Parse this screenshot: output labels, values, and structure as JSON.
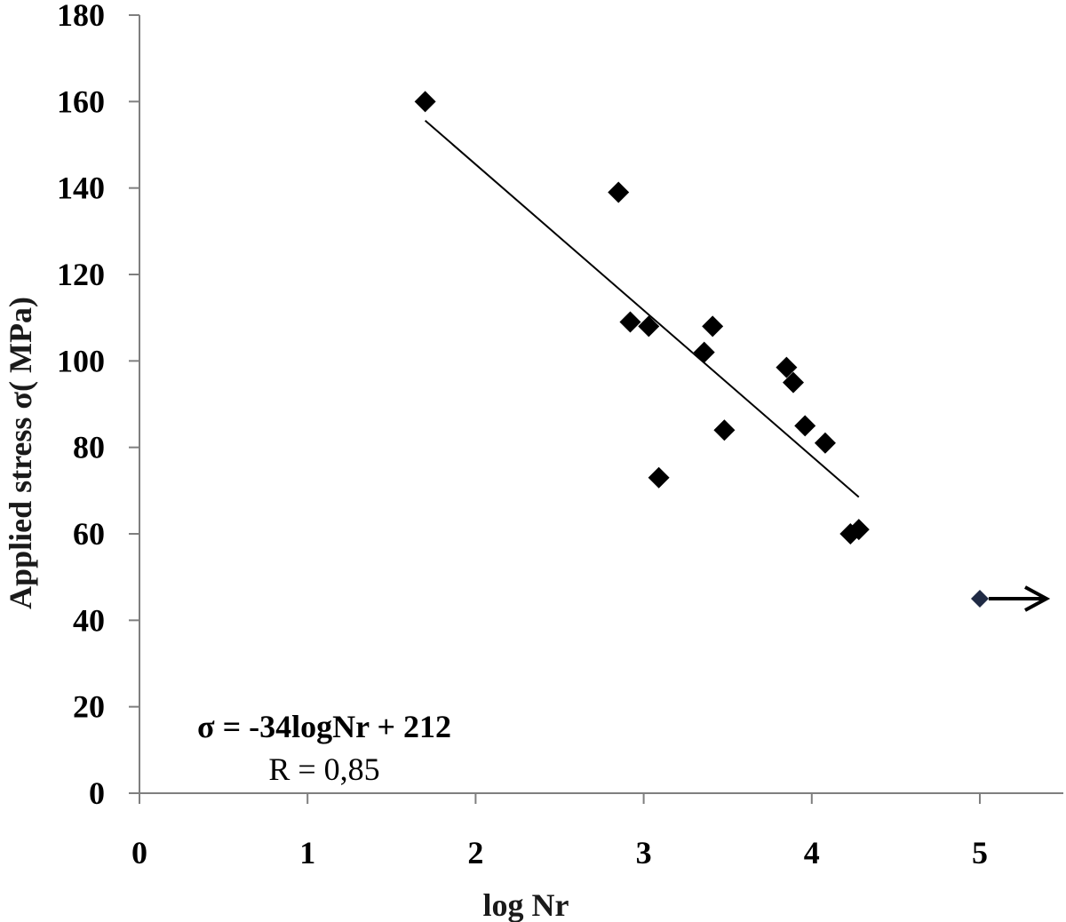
{
  "chart_data": {
    "type": "scatter",
    "title": "",
    "xlabel": "log Nr",
    "ylabel": "Applied  stress  σ( MPa)",
    "xlim": [
      0,
      5.5
    ],
    "ylim": [
      0,
      180
    ],
    "x_ticks": [
      0,
      1,
      2,
      3,
      4,
      5
    ],
    "y_ticks": [
      0,
      20,
      40,
      60,
      80,
      100,
      120,
      140,
      160,
      180
    ],
    "grid": false,
    "legend": "none",
    "series": [
      {
        "marker": "diamond",
        "color": "#000000",
        "points": [
          {
            "x": 1.7,
            "y": 160
          },
          {
            "x": 2.85,
            "y": 139
          },
          {
            "x": 2.92,
            "y": 109
          },
          {
            "x": 3.03,
            "y": 108
          },
          {
            "x": 3.09,
            "y": 73
          },
          {
            "x": 3.36,
            "y": 102
          },
          {
            "x": 3.41,
            "y": 108
          },
          {
            "x": 3.48,
            "y": 84
          },
          {
            "x": 3.85,
            "y": 98.5
          },
          {
            "x": 3.89,
            "y": 95
          },
          {
            "x": 3.96,
            "y": 85
          },
          {
            "x": 4.08,
            "y": 81
          },
          {
            "x": 4.23,
            "y": 60
          },
          {
            "x": 4.28,
            "y": 61
          }
        ]
      },
      {
        "marker": "diamond",
        "color": "#1f2a44",
        "note_marker": "arrow-right",
        "points": [
          {
            "x": 5.0,
            "y": 45
          }
        ]
      }
    ],
    "trendline": {
      "x_start": 1.7,
      "x_end": 4.28,
      "y_start": 155.6,
      "y_end": 68.5,
      "color": "#000000"
    },
    "annotations": {
      "equation": "σ = -34logNr + 212",
      "r_value": "R = 0,85"
    }
  }
}
